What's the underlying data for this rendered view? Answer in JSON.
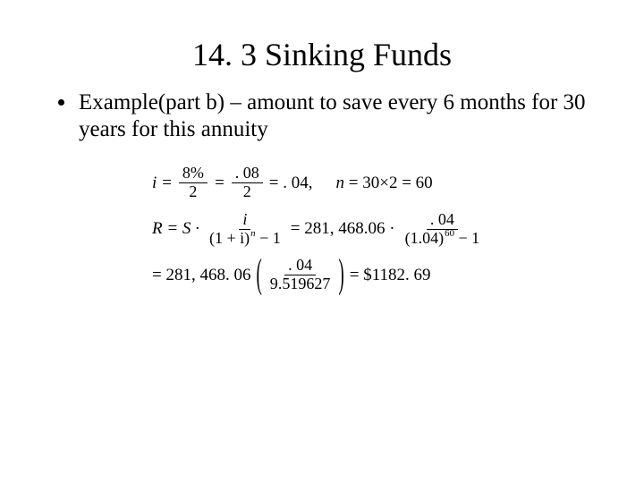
{
  "slide": {
    "title": "14. 3 Sinking Funds",
    "bullet": "Example(part b) – amount to save every 6 months for 30 years for this annuity"
  },
  "math": {
    "row1": {
      "i_eq": "i =",
      "pct_num": "8%",
      "pct_den": "2",
      "eq1": "=",
      "dec_num": ". 08",
      "dec_den": "2",
      "eq_res": "= . 04,",
      "n_expr": "n = 30 × 2 = 60"
    },
    "row2": {
      "lead": "R = S ·",
      "gen_num": "i",
      "gen_den_a": "(1 + i)",
      "gen_den_exp": "n",
      "gen_den_b": " − 1",
      "mid": "= 281, 468.06 ·",
      "val_num": ". 04",
      "val_den_a": "(1.04)",
      "val_den_exp": "60",
      "val_den_b": " − 1"
    },
    "row3": {
      "lead": "= 281, 468. 06",
      "num": ". 04",
      "den": "9.519627",
      "result": "= $1182. 69"
    }
  }
}
